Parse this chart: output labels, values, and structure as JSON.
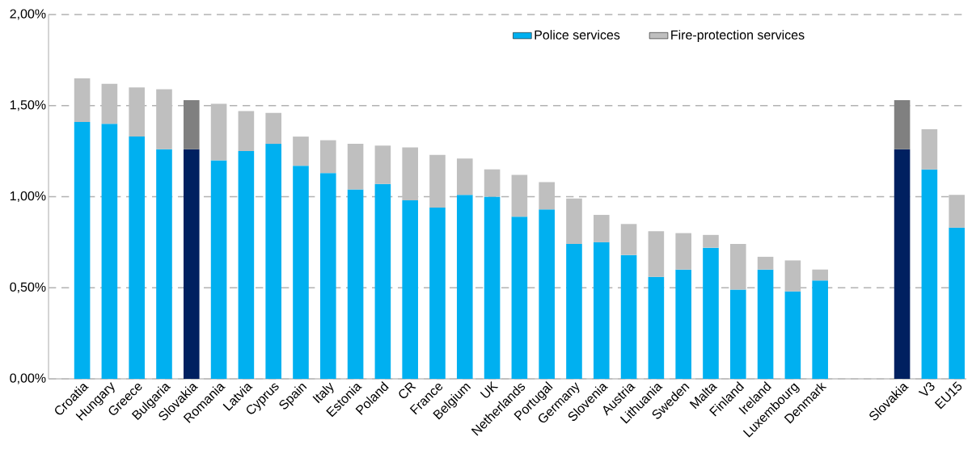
{
  "chart_data": {
    "type": "bar",
    "stacked": true,
    "categories": [
      "Croatia",
      "Hungary",
      "Greece",
      "Bulgaria",
      "Slovakia",
      "Romania",
      "Latvia",
      "Cyprus",
      "Spain",
      "Italy",
      "Estonia",
      "Poland",
      "CR",
      "France",
      "Belgium",
      "UK",
      "Netherlands",
      "Portugal",
      "Germany",
      "Slovenia",
      "Austria",
      "Lithuania",
      "Sweden",
      "Malta",
      "Finland",
      "Ireland",
      "Luxembourg",
      "Denmark",
      null,
      null,
      "Slovakia",
      "V3",
      "EU15"
    ],
    "series": [
      {
        "name": "Police services",
        "color": "#00b0f0",
        "colors": [
          "#00b0f0",
          "#00b0f0",
          "#00b0f0",
          "#00b0f0",
          "#002060",
          "#00b0f0",
          "#00b0f0",
          "#00b0f0",
          "#00b0f0",
          "#00b0f0",
          "#00b0f0",
          "#00b0f0",
          "#00b0f0",
          "#00b0f0",
          "#00b0f0",
          "#00b0f0",
          "#00b0f0",
          "#00b0f0",
          "#00b0f0",
          "#00b0f0",
          "#00b0f0",
          "#00b0f0",
          "#00b0f0",
          "#00b0f0",
          "#00b0f0",
          "#00b0f0",
          "#00b0f0",
          "#00b0f0",
          "#00b0f0",
          "#00b0f0",
          "#002060",
          "#00b0f0",
          "#00b0f0"
        ],
        "values": [
          1.41,
          1.4,
          1.33,
          1.26,
          1.26,
          1.2,
          1.25,
          1.29,
          1.17,
          1.13,
          1.04,
          1.07,
          0.98,
          0.94,
          1.01,
          1.0,
          0.89,
          0.93,
          0.74,
          0.75,
          0.68,
          0.56,
          0.6,
          0.72,
          0.49,
          0.6,
          0.48,
          0.54,
          null,
          null,
          1.26,
          1.15,
          0.83
        ]
      },
      {
        "name": "Fire-protection services",
        "color": "#bfbfbf",
        "colors": [
          "#bfbfbf",
          "#bfbfbf",
          "#bfbfbf",
          "#bfbfbf",
          "#808080",
          "#bfbfbf",
          "#bfbfbf",
          "#bfbfbf",
          "#bfbfbf",
          "#bfbfbf",
          "#bfbfbf",
          "#bfbfbf",
          "#bfbfbf",
          "#bfbfbf",
          "#bfbfbf",
          "#bfbfbf",
          "#bfbfbf",
          "#bfbfbf",
          "#bfbfbf",
          "#bfbfbf",
          "#bfbfbf",
          "#bfbfbf",
          "#bfbfbf",
          "#bfbfbf",
          "#bfbfbf",
          "#bfbfbf",
          "#bfbfbf",
          "#bfbfbf",
          "#bfbfbf",
          "#bfbfbf",
          "#808080",
          "#bfbfbf",
          "#bfbfbf"
        ],
        "values": [
          0.24,
          0.22,
          0.27,
          0.33,
          0.27,
          0.31,
          0.22,
          0.17,
          0.16,
          0.18,
          0.25,
          0.21,
          0.29,
          0.29,
          0.2,
          0.15,
          0.23,
          0.15,
          0.25,
          0.15,
          0.17,
          0.25,
          0.2,
          0.07,
          0.25,
          0.07,
          0.17,
          0.06,
          null,
          null,
          0.27,
          0.22,
          0.18
        ]
      }
    ],
    "ylim": [
      0,
      2
    ],
    "yticks": [
      {
        "value": 0,
        "label": "0,00%"
      },
      {
        "value": 0.5,
        "label": "0,50%"
      },
      {
        "value": 1,
        "label": "1,00%"
      },
      {
        "value": 1.5,
        "label": "1,50%"
      },
      {
        "value": 2,
        "label": "2,00%"
      }
    ],
    "grid": "y",
    "legend": "top right"
  }
}
